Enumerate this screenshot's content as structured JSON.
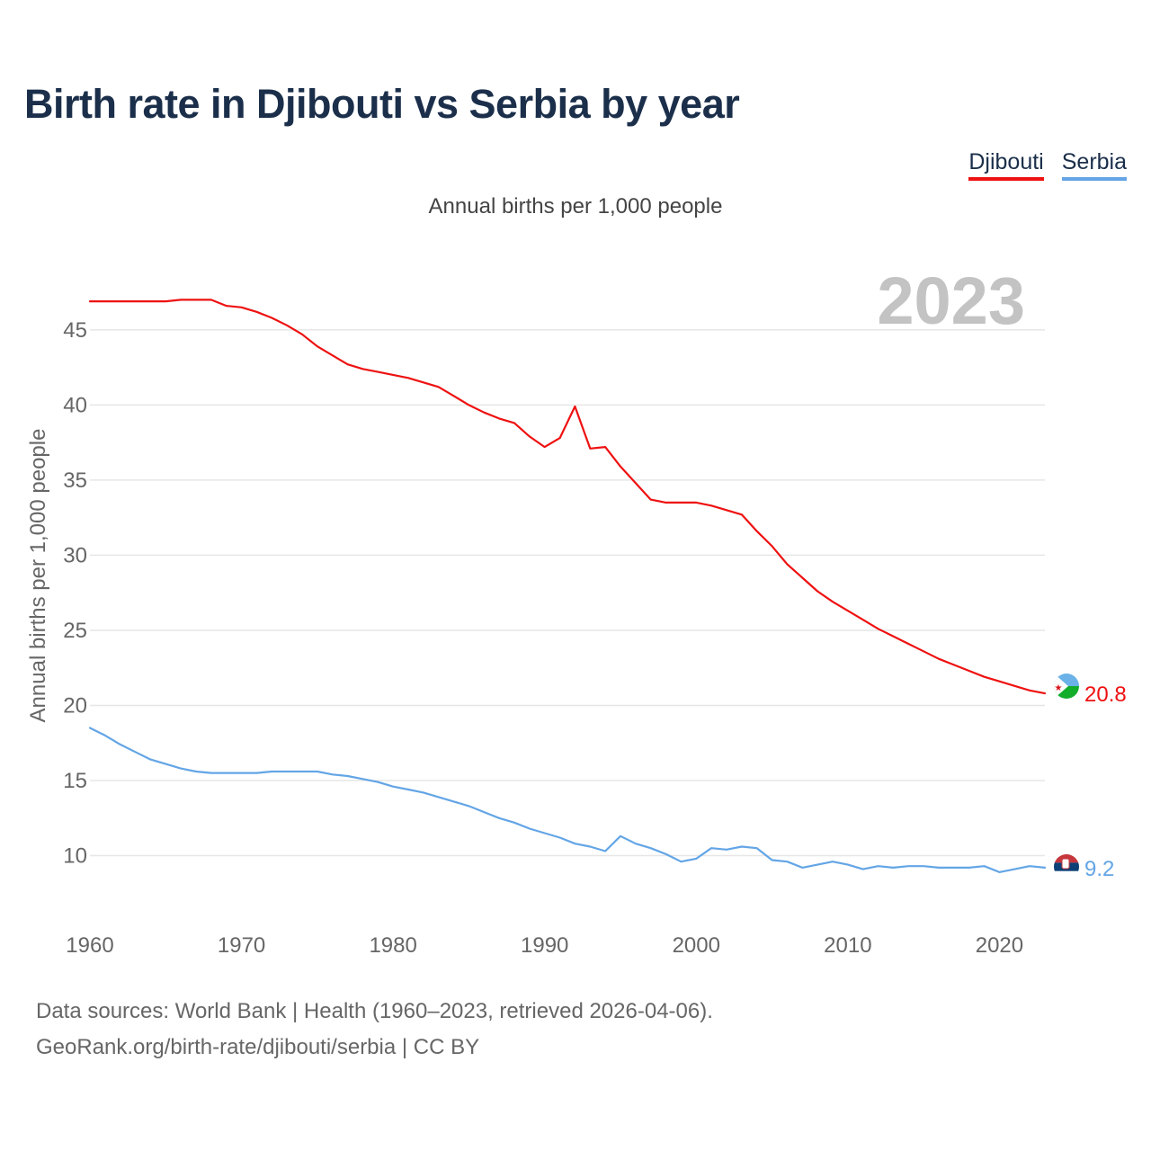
{
  "chart_data": {
    "type": "line",
    "title": "Birth rate in Djibouti vs Serbia by year",
    "subtitle": "Annual births per 1,000 people",
    "ylabel": "Annual births per 1,000 people",
    "xlabel": "",
    "year_label": "2023",
    "xlim": [
      1960,
      2023
    ],
    "ylim": [
      6.5,
      49
    ],
    "x_ticks": [
      1960,
      1970,
      1980,
      1990,
      2000,
      2010,
      2020
    ],
    "y_ticks": [
      10,
      15,
      20,
      25,
      30,
      35,
      40,
      45
    ],
    "grid": true,
    "legend_position": "top-right",
    "x": [
      1960,
      1961,
      1962,
      1963,
      1964,
      1965,
      1966,
      1967,
      1968,
      1969,
      1970,
      1971,
      1972,
      1973,
      1974,
      1975,
      1976,
      1977,
      1978,
      1979,
      1980,
      1981,
      1982,
      1983,
      1984,
      1985,
      1986,
      1987,
      1988,
      1989,
      1990,
      1991,
      1992,
      1993,
      1994,
      1995,
      1996,
      1997,
      1998,
      1999,
      2000,
      2001,
      2002,
      2003,
      2004,
      2005,
      2006,
      2007,
      2008,
      2009,
      2010,
      2011,
      2012,
      2013,
      2014,
      2015,
      2016,
      2017,
      2018,
      2019,
      2020,
      2021,
      2022,
      2023
    ],
    "series": [
      {
        "name": "Djibouti",
        "color": "#ee1111",
        "end_label": "20.8",
        "flag": "djibouti-flag-icon",
        "values": [
          46.9,
          46.9,
          46.9,
          46.9,
          46.9,
          46.9,
          47.0,
          47.0,
          47.0,
          46.6,
          46.5,
          46.2,
          45.8,
          45.3,
          44.7,
          43.9,
          43.3,
          42.7,
          42.4,
          42.2,
          42.0,
          41.8,
          41.5,
          41.2,
          40.6,
          40.0,
          39.5,
          39.1,
          38.8,
          37.9,
          37.2,
          37.8,
          39.9,
          37.1,
          37.2,
          35.9,
          34.8,
          33.7,
          33.5,
          33.5,
          33.5,
          33.3,
          33.0,
          32.7,
          31.6,
          30.6,
          29.4,
          28.5,
          27.6,
          26.9,
          26.3,
          25.7,
          25.1,
          24.6,
          24.1,
          23.6,
          23.1,
          22.7,
          22.3,
          21.9,
          21.6,
          21.3,
          21.0,
          20.8
        ]
      },
      {
        "name": "Serbia",
        "color": "#63a5e6",
        "end_label": "9.2",
        "flag": "serbia-flag-icon",
        "values": [
          18.5,
          18.0,
          17.4,
          16.9,
          16.4,
          16.1,
          15.8,
          15.6,
          15.5,
          15.5,
          15.5,
          15.5,
          15.6,
          15.6,
          15.6,
          15.6,
          15.4,
          15.3,
          15.1,
          14.9,
          14.6,
          14.4,
          14.2,
          13.9,
          13.6,
          13.3,
          12.9,
          12.5,
          12.2,
          11.8,
          11.5,
          11.2,
          10.8,
          10.6,
          10.3,
          11.3,
          10.8,
          10.5,
          10.1,
          9.6,
          9.8,
          10.5,
          10.4,
          10.6,
          10.5,
          9.7,
          9.6,
          9.2,
          9.4,
          9.6,
          9.4,
          9.1,
          9.3,
          9.2,
          9.3,
          9.3,
          9.2,
          9.2,
          9.2,
          9.3,
          8.9,
          9.1,
          9.3,
          9.2
        ]
      }
    ]
  },
  "footer": {
    "line1": "Data sources: World Bank | Health (1960–2023, retrieved 2026-04-06).",
    "line2": "GeoRank.org/birth-rate/djibouti/serbia | CC BY"
  }
}
